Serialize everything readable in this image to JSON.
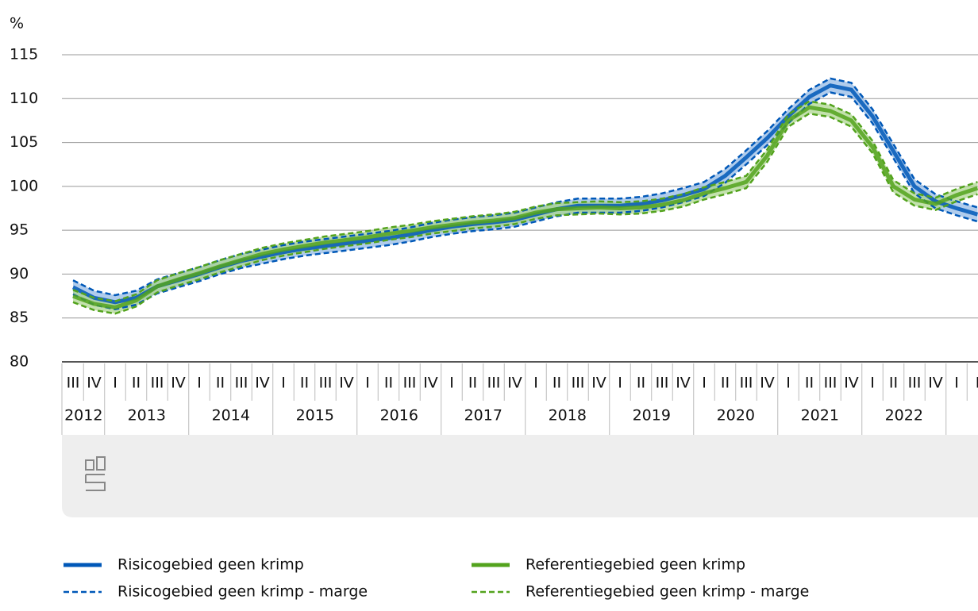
{
  "chart_data": {
    "type": "line",
    "y_label": "%",
    "ylim": [
      80,
      115
    ],
    "yticks": [
      80,
      85,
      90,
      95,
      100,
      105,
      110,
      115
    ],
    "grid": true,
    "categories": [
      "III",
      "IV",
      "I",
      "II",
      "III",
      "IV",
      "I",
      "II",
      "III",
      "IV",
      "I",
      "II",
      "III",
      "IV",
      "I",
      "II",
      "III",
      "IV",
      "I",
      "II",
      "III",
      "IV",
      "I",
      "II",
      "III",
      "IV",
      "I",
      "II",
      "III",
      "IV",
      "I",
      "II",
      "III",
      "IV",
      "I",
      "II",
      "III",
      "IV",
      "I",
      "II",
      "III",
      "IV",
      "I",
      "I"
    ],
    "years": [
      "2012",
      "2013",
      "2014",
      "2015",
      "2016",
      "2017",
      "2018",
      "2019",
      "2020",
      "2021",
      "2022"
    ],
    "series": [
      {
        "name": "Risicogebied geen krimp",
        "color": "#0058b8",
        "values": [
          88.5,
          87.3,
          86.8,
          87.3,
          88.6,
          89.3,
          90.0,
          90.8,
          91.5,
          92.0,
          92.5,
          92.9,
          93.2,
          93.5,
          93.8,
          94.1,
          94.5,
          95.0,
          95.4,
          95.7,
          95.9,
          96.2,
          96.8,
          97.4,
          97.8,
          97.8,
          97.8,
          98.0,
          98.4,
          99.0,
          99.7,
          101.2,
          103.3,
          105.5,
          108.0,
          110.2,
          111.5,
          111.0,
          108.0,
          104.0,
          100.0,
          98.3,
          97.5,
          96.8
        ]
      },
      {
        "name": "Risicogebied geen krimp - marge",
        "color": "#0058b8",
        "band": "#8fb6e4",
        "upper": [
          89.3,
          88.1,
          87.6,
          88.1,
          89.4,
          90.1,
          90.8,
          91.6,
          92.3,
          92.8,
          93.3,
          93.7,
          94.0,
          94.3,
          94.6,
          94.9,
          95.3,
          95.8,
          96.2,
          96.5,
          96.7,
          97.0,
          97.6,
          98.2,
          98.6,
          98.6,
          98.6,
          98.8,
          99.2,
          99.8,
          100.5,
          102.0,
          104.1,
          106.3,
          108.8,
          111.0,
          112.3,
          111.8,
          108.8,
          104.8,
          100.8,
          99.1,
          98.3,
          97.6
        ],
        "lower": [
          87.7,
          86.5,
          86.0,
          86.5,
          87.8,
          88.5,
          89.2,
          90.0,
          90.7,
          91.2,
          91.7,
          92.1,
          92.4,
          92.7,
          93.0,
          93.3,
          93.7,
          94.2,
          94.6,
          94.9,
          95.1,
          95.4,
          96.0,
          96.6,
          97.0,
          97.0,
          97.0,
          97.2,
          97.6,
          98.2,
          98.9,
          100.4,
          102.5,
          104.7,
          107.2,
          109.4,
          110.7,
          110.2,
          107.2,
          103.2,
          99.2,
          97.5,
          96.7,
          96.0
        ]
      },
      {
        "name": "Referentiegebied geen krimp",
        "color": "#53a31d",
        "values": [
          87.5,
          86.6,
          86.2,
          87.0,
          88.6,
          89.4,
          90.1,
          90.9,
          91.6,
          92.3,
          92.8,
          93.2,
          93.6,
          93.9,
          94.2,
          94.6,
          94.9,
          95.3,
          95.6,
          95.9,
          96.1,
          96.4,
          97.0,
          97.4,
          97.5,
          97.6,
          97.5,
          97.6,
          97.9,
          98.4,
          99.2,
          99.8,
          100.5,
          103.5,
          107.5,
          109.0,
          108.6,
          107.5,
          104.5,
          100.0,
          98.5,
          98.0,
          99.0,
          99.8
        ]
      },
      {
        "name": "Referentiegebied geen krimp - marge",
        "color": "#53a31d",
        "band": "#a9d48a",
        "upper": [
          88.2,
          87.3,
          86.9,
          87.7,
          89.3,
          90.1,
          90.8,
          91.6,
          92.3,
          93.0,
          93.5,
          93.9,
          94.3,
          94.6,
          94.9,
          95.3,
          95.6,
          96.0,
          96.3,
          96.6,
          96.8,
          97.1,
          97.7,
          98.1,
          98.2,
          98.3,
          98.2,
          98.3,
          98.6,
          99.1,
          99.9,
          100.5,
          101.2,
          104.2,
          108.2,
          109.7,
          109.3,
          108.2,
          105.2,
          100.7,
          99.2,
          98.7,
          99.7,
          100.5
        ],
        "lower": [
          86.8,
          85.9,
          85.5,
          86.3,
          87.9,
          88.7,
          89.4,
          90.2,
          90.9,
          91.6,
          92.1,
          92.5,
          92.9,
          93.2,
          93.5,
          93.9,
          94.2,
          94.6,
          94.9,
          95.2,
          95.4,
          95.7,
          96.3,
          96.7,
          96.8,
          96.9,
          96.8,
          96.9,
          97.2,
          97.7,
          98.5,
          99.1,
          99.8,
          102.8,
          106.8,
          108.3,
          107.9,
          106.8,
          103.8,
          99.3,
          97.8,
          97.3,
          98.3,
          99.1
        ]
      }
    ]
  }
}
